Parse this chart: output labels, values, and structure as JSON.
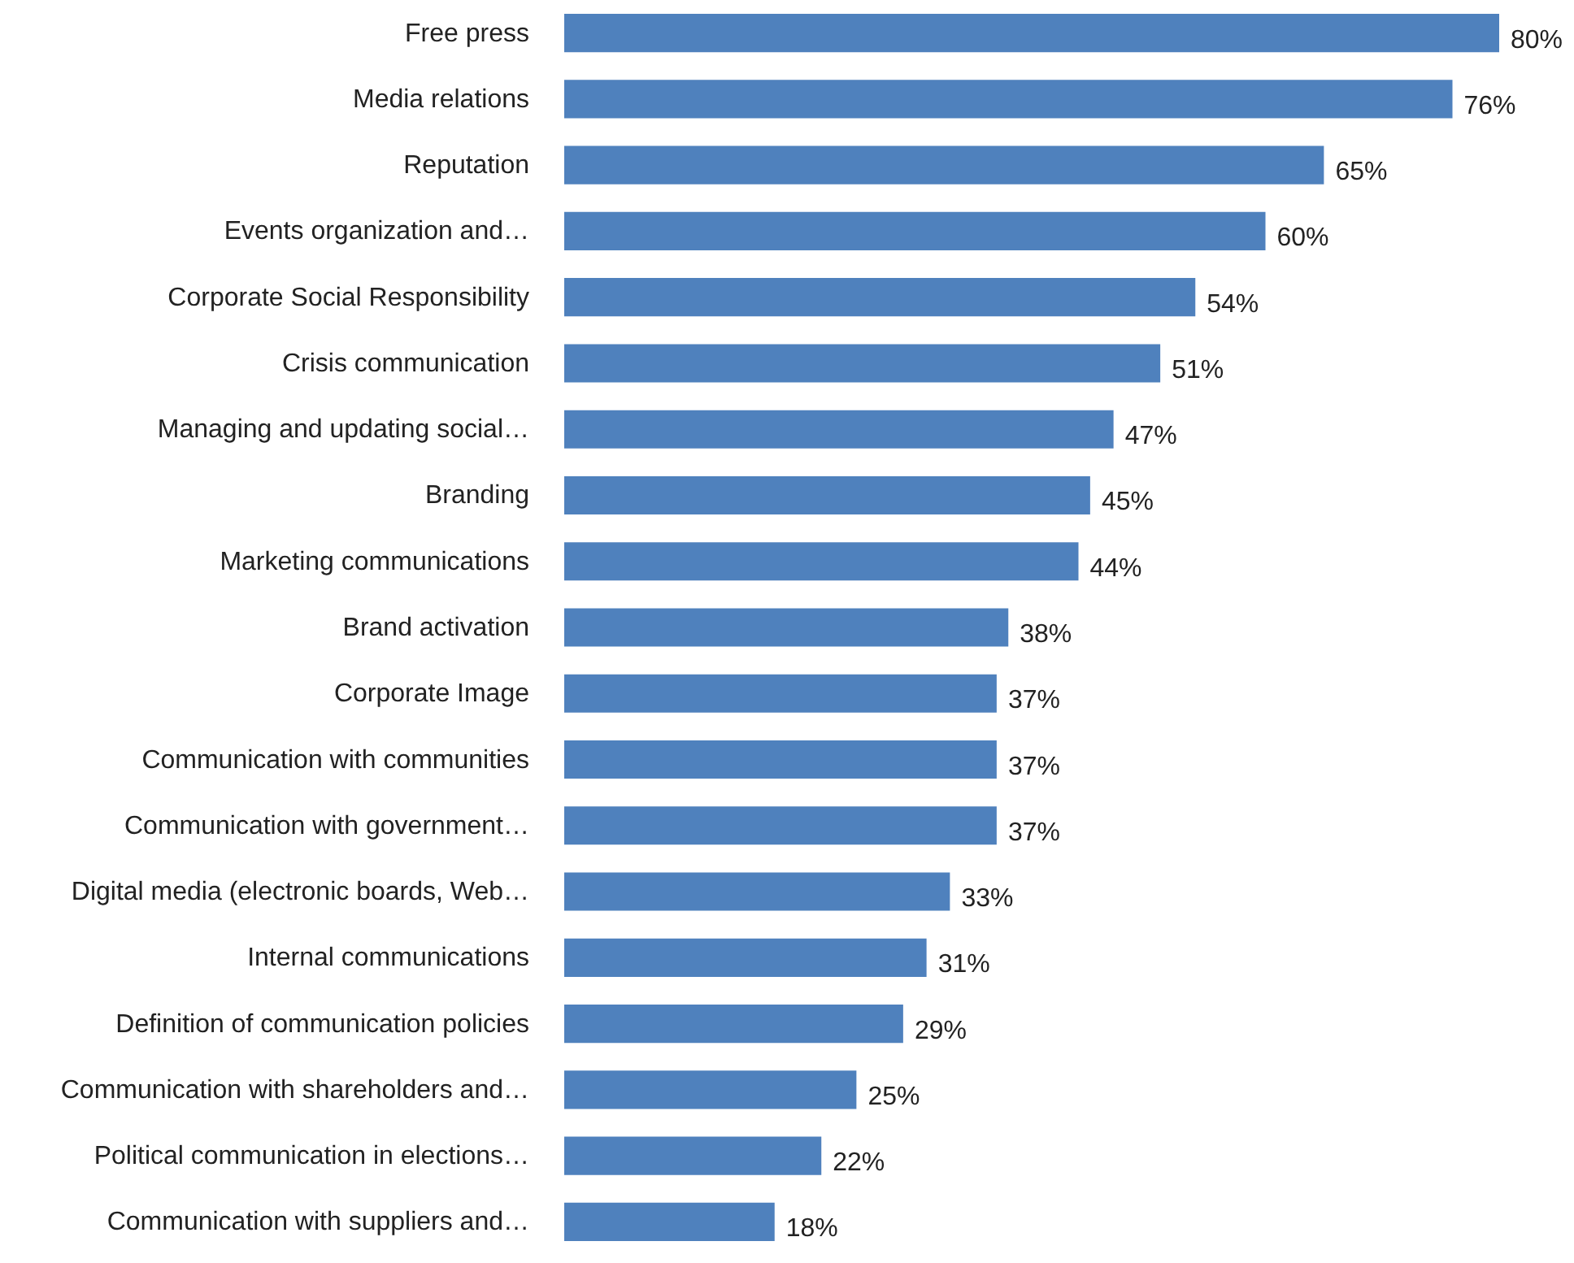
{
  "chart_data": {
    "type": "bar",
    "orientation": "horizontal",
    "color": "#4f81bd",
    "categories": [
      "Free press",
      "Media relations",
      "Reputation",
      "Events organization and…",
      "Corporate Social Responsibility",
      "Crisis communication",
      "Managing and updating social…",
      "Branding",
      "Marketing communications",
      "Brand activation",
      "Corporate Image",
      "Communication with communities",
      "Communication with government…",
      "Digital media (electronic boards, Web…",
      "Internal communications",
      "Definition of communication policies",
      "Communication with shareholders and…",
      "Political communication in elections…",
      "Communication with suppliers and…"
    ],
    "values": [
      80,
      76,
      65,
      60,
      54,
      51,
      47,
      45,
      44,
      38,
      37,
      37,
      37,
      33,
      31,
      29,
      25,
      22,
      18
    ],
    "value_labels": [
      "80%",
      "76%",
      "65%",
      "60%",
      "54%",
      "51%",
      "47%",
      "45%",
      "44%",
      "38%",
      "37%",
      "37%",
      "37%",
      "33%",
      "31%",
      "29%",
      "25%",
      "22%",
      "18%"
    ]
  }
}
